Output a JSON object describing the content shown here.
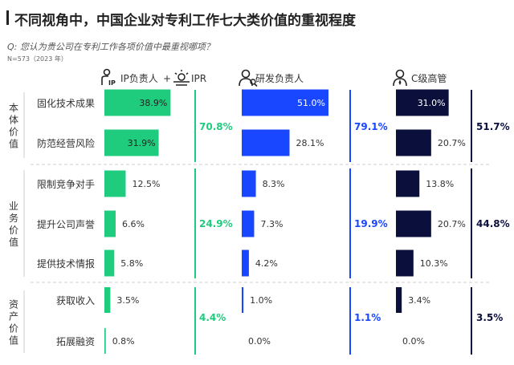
{
  "title": "不同视角中，中国企业对专利工作七大类价值的重视程度",
  "question": "Q: 您认为贵公司在专利工作各项价值中最重视哪项？",
  "sample": "N=573（2023 年）",
  "colors": {
    "ip": "#1fcc7e",
    "rd": "#1947ff",
    "exec": "#0b0f3c",
    "divider": "#cfcfcf"
  },
  "chart_data": {
    "type": "bar",
    "series": [
      {
        "name": "IP负责人 + IPR",
        "icons": [
          "ip-person-icon",
          "light-bulb-icon"
        ],
        "values": [
          38.9,
          31.9,
          12.5,
          6.6,
          5.8,
          3.5,
          0.8
        ]
      },
      {
        "name": "研发负责人",
        "icons": [
          "researcher-icon"
        ],
        "values": [
          51.0,
          28.1,
          8.3,
          7.3,
          4.2,
          1.0,
          0.0
        ]
      },
      {
        "name": "C级高管",
        "icons": [
          "executive-icon"
        ],
        "values": [
          31.0,
          20.7,
          13.8,
          20.7,
          10.3,
          3.4,
          0.0
        ]
      }
    ],
    "groups": [
      {
        "label": "本体价值",
        "categories": [
          "固化技术成果",
          "防范经营风险"
        ],
        "totals": [
          70.8,
          79.1,
          51.7
        ]
      },
      {
        "label": "业务价值",
        "categories": [
          "限制竞争对手",
          "提升公司声誉",
          "提供技术情报"
        ],
        "totals": [
          24.9,
          19.9,
          44.8
        ]
      },
      {
        "label": "资产价值",
        "categories": [
          "获取收入",
          "拓展融资"
        ],
        "totals": [
          4.4,
          1.1,
          3.5
        ]
      }
    ],
    "value_suffix": "%",
    "xlim": [
      0,
      51.0
    ]
  }
}
